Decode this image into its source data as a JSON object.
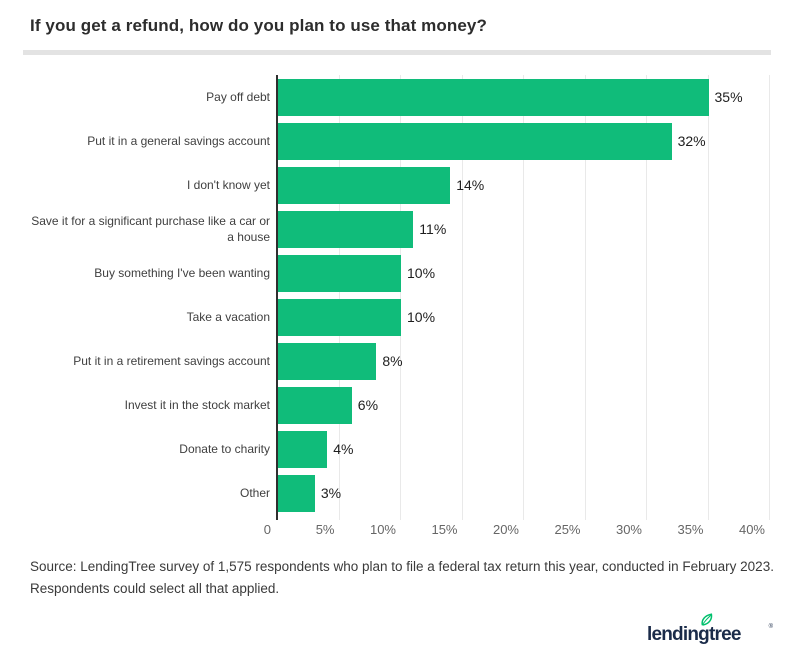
{
  "title": "If you get a refund, how do you plan to use that money?",
  "chart_data": {
    "type": "bar",
    "orientation": "horizontal",
    "title": "If you get a refund, how do you plan to use that money?",
    "categories": [
      "Pay off debt",
      "Put it in a general savings account",
      "I don't know yet",
      "Save it for a significant purchase like a car or a house",
      "Buy something I've been wanting",
      "Take a vacation",
      "Put it in a retirement savings account",
      "Invest it in the stock market",
      "Donate to charity",
      "Other"
    ],
    "values": [
      35,
      32,
      14,
      11,
      10,
      10,
      8,
      6,
      4,
      3
    ],
    "value_labels": [
      "35%",
      "32%",
      "14%",
      "11%",
      "10%",
      "10%",
      "8%",
      "6%",
      "4%",
      "3%"
    ],
    "xlabel": "",
    "ylabel": "",
    "xlim": [
      0,
      40
    ],
    "x_ticks": [
      "0",
      "5%",
      "10%",
      "15%",
      "20%",
      "25%",
      "30%",
      "35%",
      "40%"
    ],
    "x_tick_values": [
      0,
      5,
      10,
      15,
      20,
      25,
      30,
      35,
      40
    ],
    "grid": "vertical-only",
    "legend": "none",
    "bar_color": "#10bc7a",
    "axis_color": "#2f2f2f",
    "gridline_color": "#e9e9e9"
  },
  "source": {
    "line1": "Source: LendingTree survey of 1,575 respondents who plan to file a federal tax return this year, conducted in February 2023.",
    "line2": "Respondents could select all that applied."
  },
  "logo": {
    "text": "lendingtree",
    "trademark": "®",
    "text_color": "#1a2b49",
    "leaf_color": "#00c06d"
  }
}
